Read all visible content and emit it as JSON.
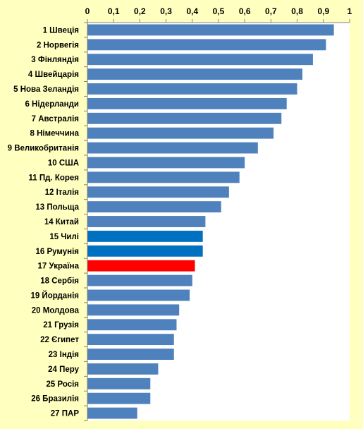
{
  "chart_data": {
    "type": "bar",
    "orientation": "horizontal",
    "categories": [
      "1 Швеція",
      "2 Норвегія",
      "3 Фінляндія",
      "4 Швейцарія",
      "5 Нова Зеландія",
      "6 Нідерланди",
      "7 Австралія",
      "8 Німеччина",
      "9 Великобританія",
      "10 США",
      "11 Пд. Корея",
      "12 Італія",
      "13 Польща",
      "14 Китай",
      "15 Чилі",
      "16 Румунія",
      "17 Україна",
      "18 Сербія",
      "19 Йорданія",
      "20 Молдова",
      "21 Грузія",
      "22 Єгипет",
      "23 Індія",
      "24 Перу",
      "25 Росія",
      "26 Бразилія",
      "27 ПАР"
    ],
    "values": [
      0.94,
      0.91,
      0.86,
      0.82,
      0.8,
      0.76,
      0.74,
      0.71,
      0.65,
      0.6,
      0.58,
      0.54,
      0.51,
      0.45,
      0.44,
      0.44,
      0.41,
      0.4,
      0.39,
      0.35,
      0.34,
      0.33,
      0.33,
      0.27,
      0.24,
      0.24,
      0.19
    ],
    "bar_colors": [
      "#4f81bd",
      "#4f81bd",
      "#4f81bd",
      "#4f81bd",
      "#4f81bd",
      "#4f81bd",
      "#4f81bd",
      "#4f81bd",
      "#4f81bd",
      "#4f81bd",
      "#4f81bd",
      "#4f81bd",
      "#4f81bd",
      "#4f81bd",
      "#0070c0",
      "#0070c0",
      "#ff0000",
      "#4f81bd",
      "#4f81bd",
      "#4f81bd",
      "#4f81bd",
      "#4f81bd",
      "#4f81bd",
      "#4f81bd",
      "#4f81bd",
      "#4f81bd",
      "#4f81bd"
    ],
    "xticks": [
      "0",
      "0,1",
      "0,2",
      "0,3",
      "0,4",
      "0,5",
      "0,6",
      "0,7",
      "0,8",
      "0,9",
      "1"
    ],
    "xlim": [
      0,
      1
    ],
    "x_axis_position": "top",
    "grid": false,
    "title": "",
    "xlabel": "",
    "ylabel": "",
    "background_color": "#ffffc0",
    "plot_background_color": "#ffffff"
  }
}
